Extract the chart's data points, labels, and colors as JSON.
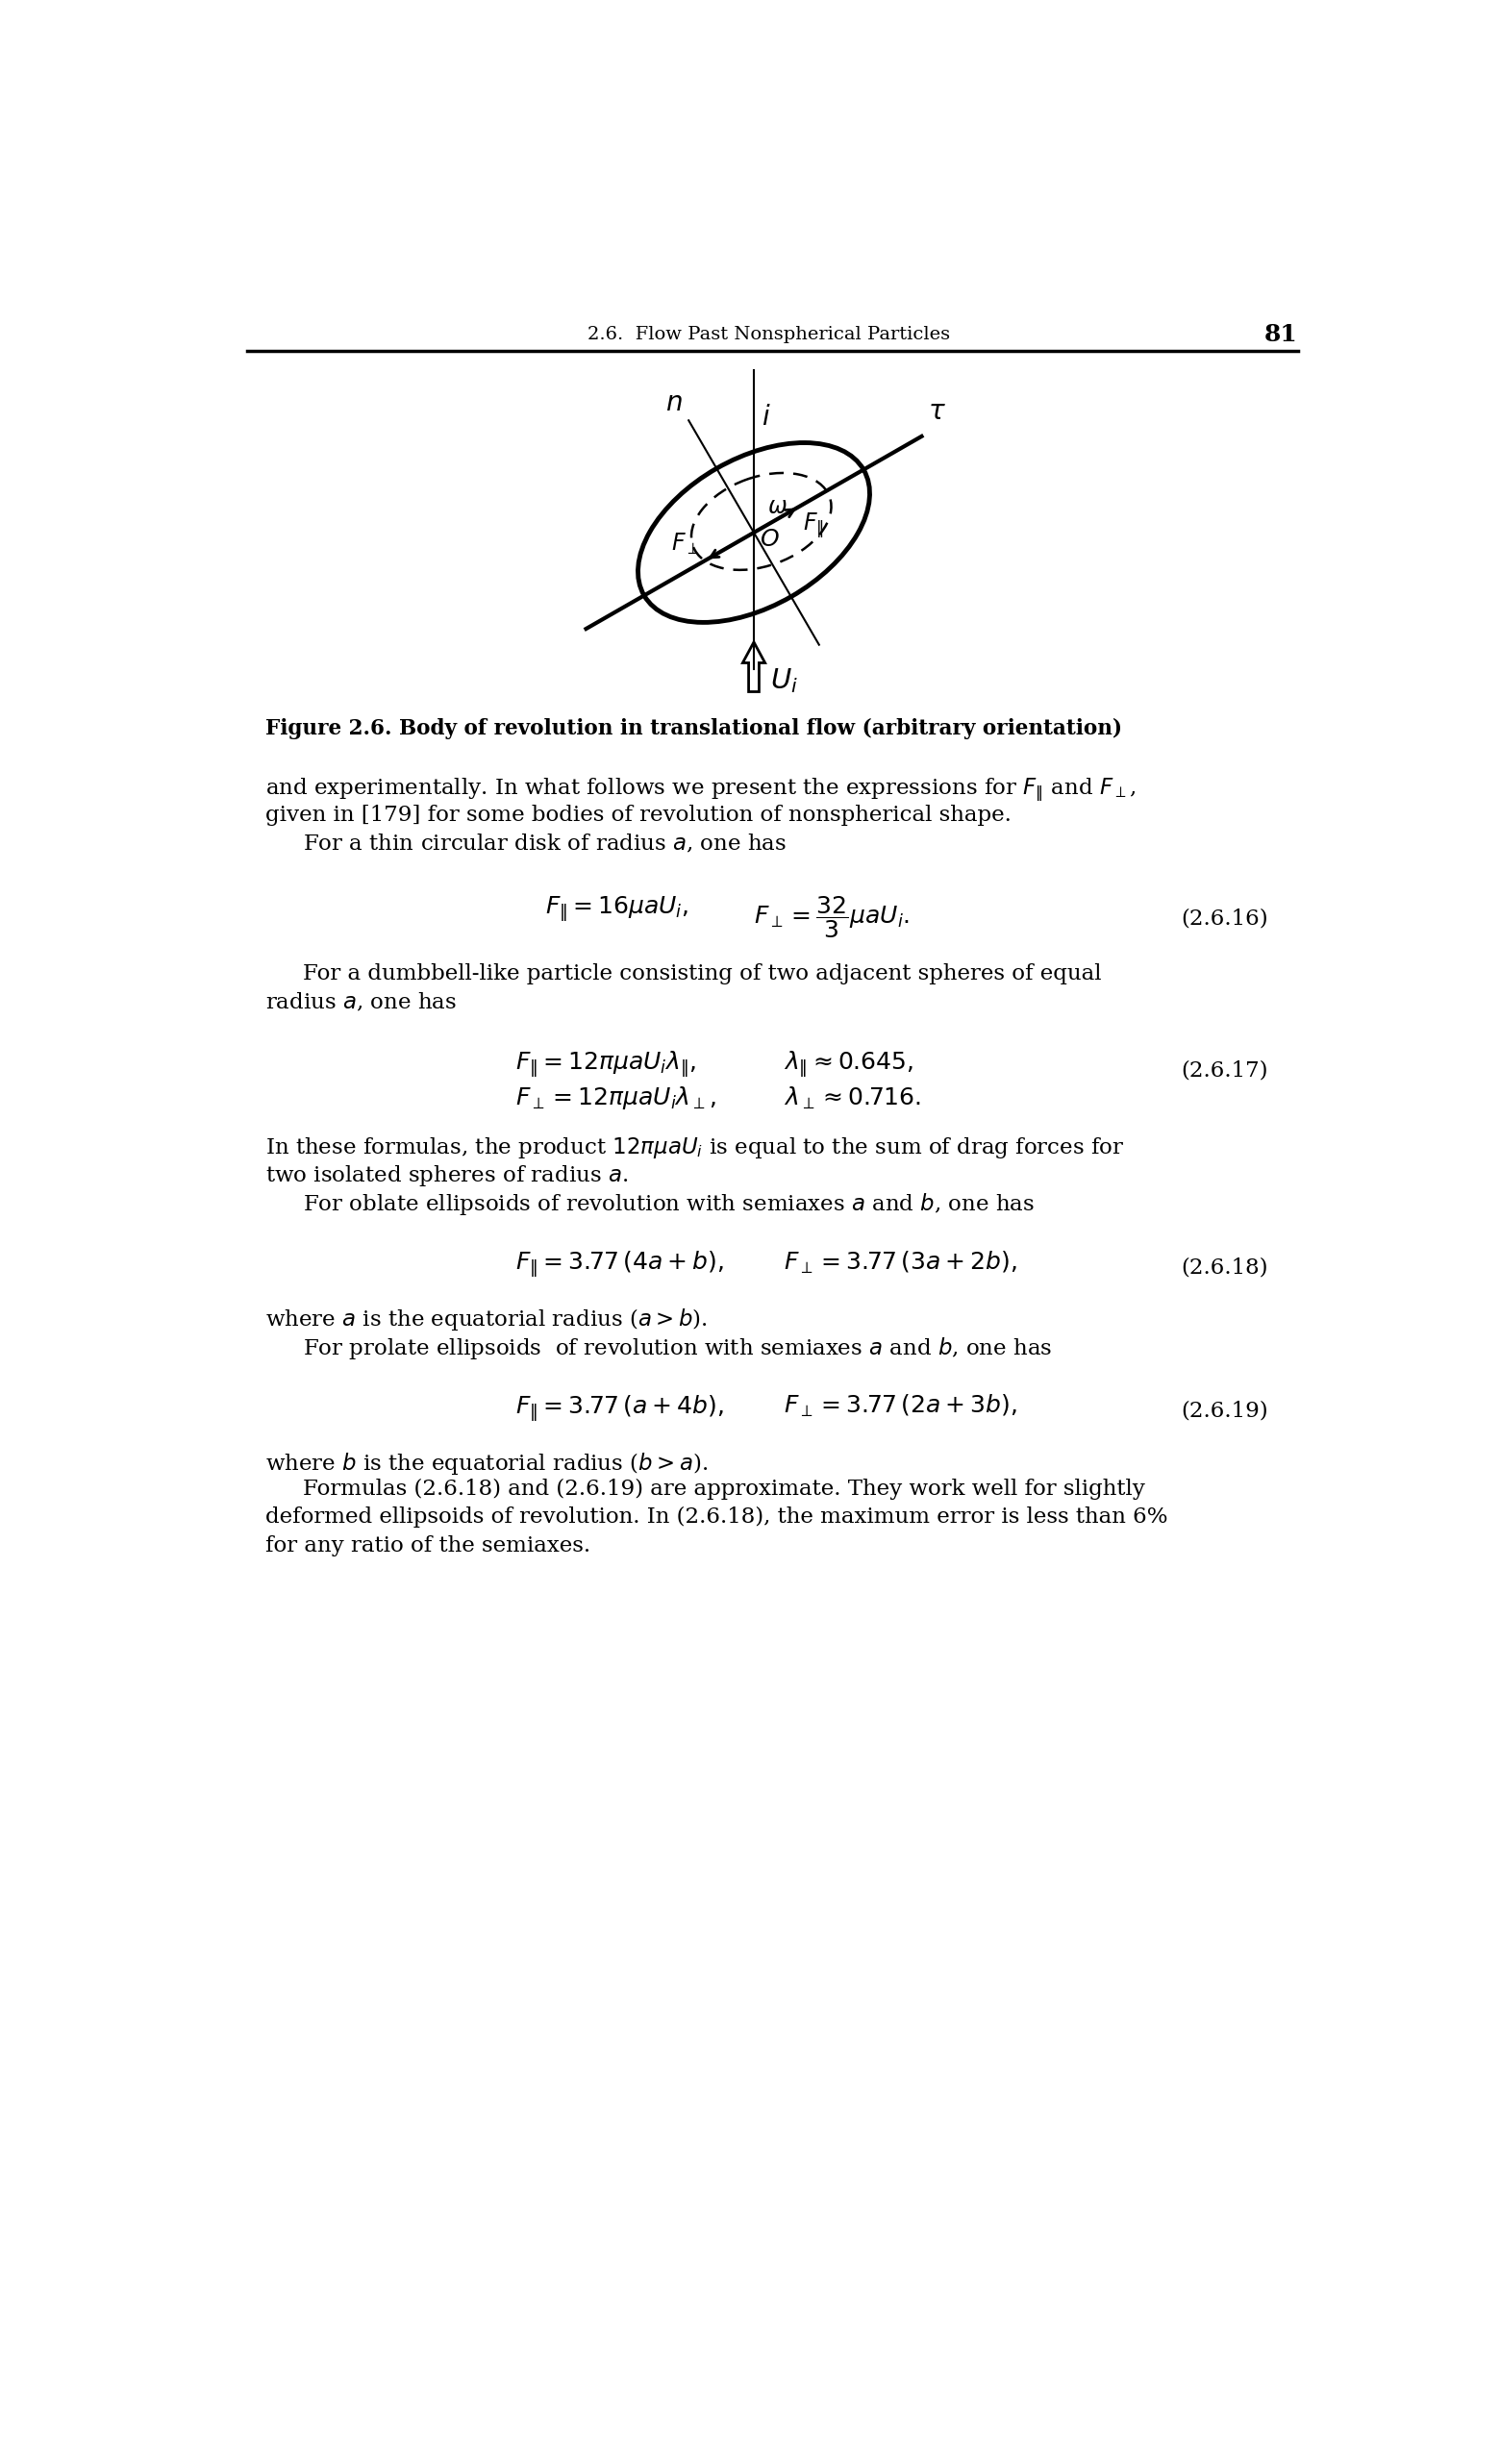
{
  "page_header": "2.6.  Flow Past Nonspherical Particles",
  "page_number": "81",
  "figure_caption": "Figure 2.6. Body of revolution in translational flow (arbitrary orientation)",
  "background_color": "#ffffff",
  "eq_2616_label": "(2.6.16)",
  "eq_2617_label": "(2.6.17)",
  "eq_2618_label": "(2.6.18)",
  "eq_2619_label": "(2.6.19)"
}
